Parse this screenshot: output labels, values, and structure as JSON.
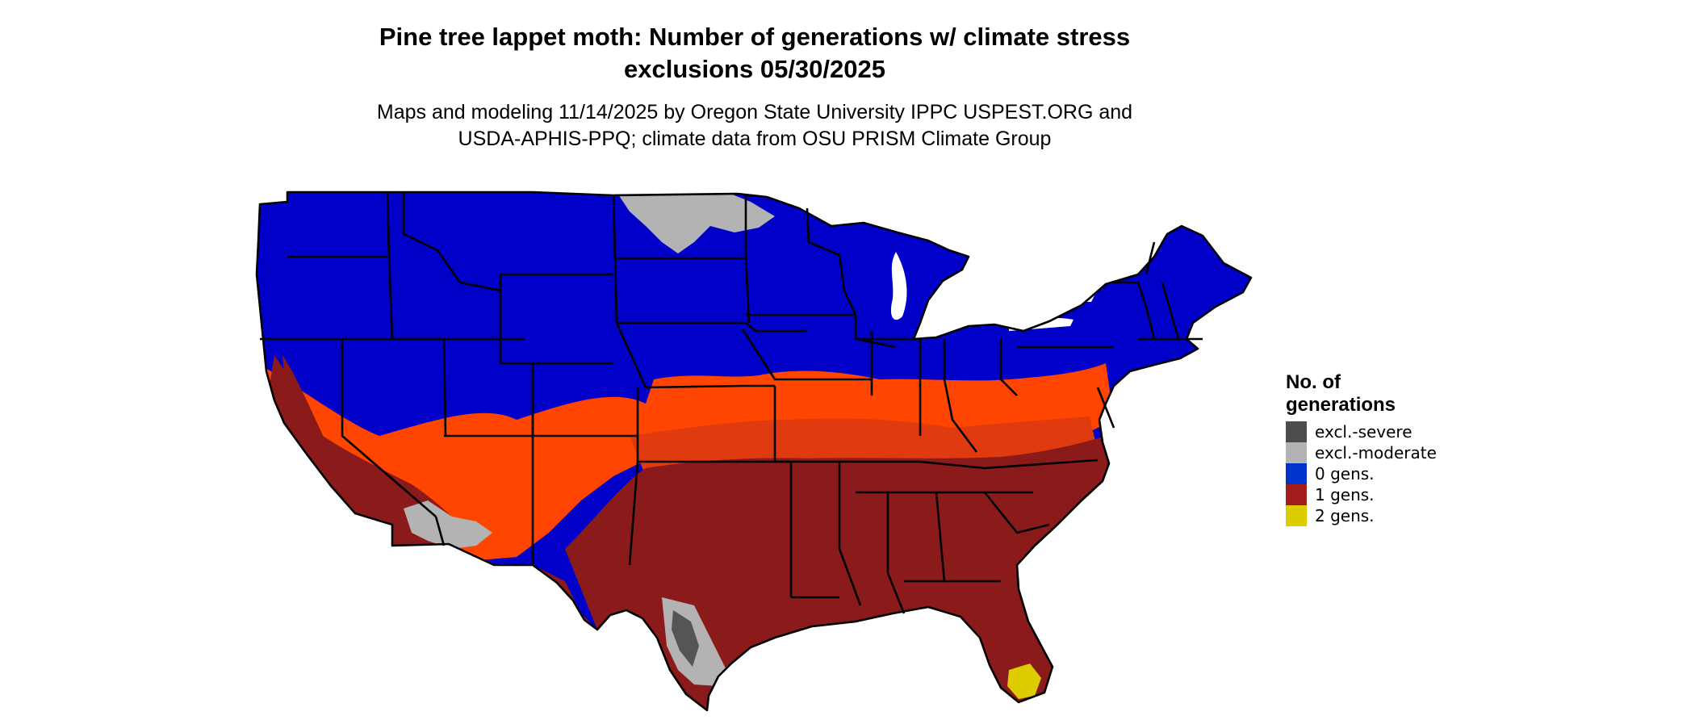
{
  "map": {
    "title_line1": "Pine tree lappet moth: Number of generations w/ climate stress",
    "title_line2": "exclusions 05/30/2025",
    "subtitle_line1": "Maps and modeling 11/14/2025 by Oregon State University IPPC USPEST.ORG and",
    "subtitle_line2": "USDA-APHIS-PPQ; climate data from OSU PRISM Climate Group",
    "region": "Contiguous United States"
  },
  "legend": {
    "title_line1": "No. of",
    "title_line2": "generations",
    "items": [
      {
        "label": "excl.-severe",
        "color": "#4d4d4d"
      },
      {
        "label": "excl.-moderate",
        "color": "#b3b3b3"
      },
      {
        "label": "0 gens.",
        "color": "#0033cc"
      },
      {
        "label": "1 gens.",
        "color": "#a31c1c"
      },
      {
        "label": "2 gens.",
        "color": "#ddcc00"
      }
    ]
  },
  "colors": {
    "zero_gens_fill": "#0000c8",
    "one_gen_fill": "#8b1a1a",
    "transition_orange": "#ff4500",
    "transition_darkorange": "#e03a10",
    "exclusion_moderate": "#b3b3b3",
    "exclusion_severe": "#555555",
    "two_gens": "#ddcc00",
    "state_border": "#000000"
  }
}
